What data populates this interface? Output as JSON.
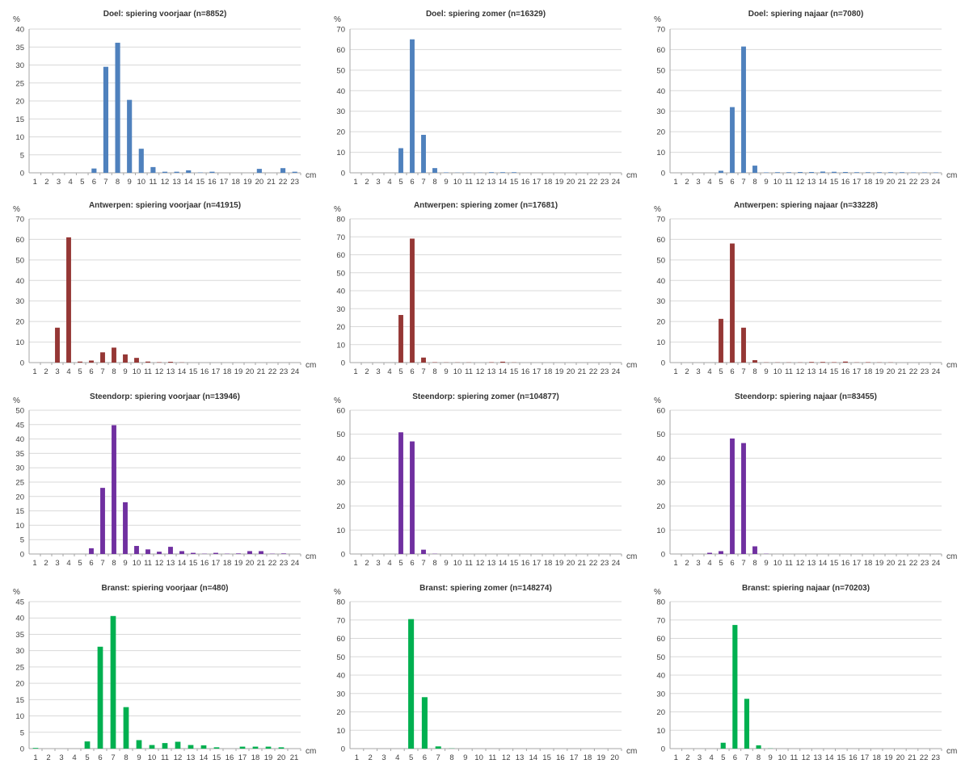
{
  "colors": {
    "blue": "#4f81bd",
    "red": "#953735",
    "purple": "#7030a0",
    "green": "#00b050",
    "grid": "#d9d9d9",
    "axis": "#a6a6a6"
  },
  "chart_data": [
    {
      "type": "bar",
      "title": "Doel: spiering voorjaar (n=8852)",
      "ylabel": "%",
      "xlabel": "cm",
      "ylim": [
        0,
        40
      ],
      "yticks": [
        0,
        5,
        10,
        15,
        20,
        25,
        30,
        35,
        40
      ],
      "grid": true,
      "color": "#4f81bd",
      "categories": [
        "1",
        "2",
        "3",
        "4",
        "5",
        "6",
        "7",
        "8",
        "9",
        "10",
        "11",
        "12",
        "13",
        "14",
        "15",
        "16",
        "17",
        "18",
        "19",
        "20",
        "21",
        "22",
        "23"
      ],
      "values": [
        0,
        0,
        0,
        0,
        0,
        1.2,
        29.5,
        36.2,
        20.3,
        6.7,
        1.6,
        0.3,
        0.3,
        0.7,
        0.1,
        0.3,
        0,
        0,
        0,
        1.1,
        0,
        1.3,
        0.3
      ]
    },
    {
      "type": "bar",
      "title": "Doel: spiering zomer (n=16329)",
      "ylabel": "%",
      "xlabel": "cm",
      "ylim": [
        0,
        70
      ],
      "yticks": [
        0,
        10,
        20,
        30,
        40,
        50,
        60,
        70
      ],
      "grid": true,
      "color": "#4f81bd",
      "categories": [
        "1",
        "2",
        "3",
        "4",
        "5",
        "6",
        "7",
        "8",
        "9",
        "10",
        "11",
        "12",
        "13",
        "14",
        "15",
        "16",
        "17",
        "18",
        "19",
        "20",
        "21",
        "22",
        "23",
        "24"
      ],
      "values": [
        0,
        0,
        0,
        0,
        12,
        65,
        18.5,
        2.3,
        0.2,
        0.1,
        0.1,
        0.1,
        0.3,
        0.3,
        0.3,
        0,
        0,
        0,
        0,
        0,
        0,
        0,
        0,
        0
      ]
    },
    {
      "type": "bar",
      "title": "Doel: spiering najaar (n=7080)",
      "ylabel": "%",
      "xlabel": "cm",
      "ylim": [
        0,
        70
      ],
      "yticks": [
        0,
        10,
        20,
        30,
        40,
        50,
        60,
        70
      ],
      "grid": true,
      "color": "#4f81bd",
      "categories": [
        "1",
        "2",
        "3",
        "4",
        "5",
        "6",
        "7",
        "8",
        "9",
        "10",
        "11",
        "12",
        "13",
        "14",
        "15",
        "16",
        "17",
        "18",
        "19",
        "20",
        "21",
        "22",
        "23",
        "24"
      ],
      "values": [
        0,
        0,
        0,
        0,
        1,
        32,
        61.5,
        3.5,
        0.2,
        0.3,
        0.3,
        0.4,
        0.4,
        0.6,
        0.5,
        0.4,
        0.3,
        0.3,
        0.3,
        0.3,
        0.3,
        0.2,
        0.2,
        0.2
      ]
    },
    {
      "type": "bar",
      "title": "Antwerpen: spiering voorjaar (n=41915)",
      "ylabel": "%",
      "xlabel": "cm",
      "ylim": [
        0,
        70
      ],
      "yticks": [
        0,
        10,
        20,
        30,
        40,
        50,
        60,
        70
      ],
      "grid": true,
      "color": "#953735",
      "categories": [
        "1",
        "2",
        "3",
        "4",
        "5",
        "6",
        "7",
        "8",
        "9",
        "10",
        "11",
        "12",
        "13",
        "14",
        "15",
        "16",
        "17",
        "18",
        "19",
        "20",
        "21",
        "22",
        "23",
        "24"
      ],
      "values": [
        0,
        0,
        17,
        61,
        0.5,
        1,
        5,
        7.3,
        4,
        2.3,
        0.5,
        0.2,
        0.4,
        0.1,
        0,
        0,
        0,
        0,
        0,
        0,
        0,
        0,
        0,
        0
      ]
    },
    {
      "type": "bar",
      "title": "Antwerpen: spiering zomer (n=17681)",
      "ylabel": "%",
      "xlabel": "cm",
      "ylim": [
        0,
        80
      ],
      "yticks": [
        0,
        10,
        20,
        30,
        40,
        50,
        60,
        70,
        80
      ],
      "grid": true,
      "color": "#953735",
      "categories": [
        "1",
        "2",
        "3",
        "4",
        "5",
        "6",
        "7",
        "8",
        "9",
        "10",
        "11",
        "12",
        "13",
        "14",
        "15",
        "16",
        "17",
        "18",
        "19",
        "20",
        "21",
        "22",
        "23",
        "24"
      ],
      "values": [
        0,
        0,
        0,
        0,
        26.5,
        69,
        2.8,
        0.2,
        0.1,
        0.1,
        0.1,
        0,
        0.2,
        0.5,
        0.1,
        0,
        0,
        0,
        0,
        0,
        0,
        0,
        0,
        0
      ]
    },
    {
      "type": "bar",
      "title": "Antwerpen: spiering najaar (n=33228)",
      "ylabel": "%",
      "xlabel": "cm",
      "ylim": [
        0,
        70
      ],
      "yticks": [
        0,
        10,
        20,
        30,
        40,
        50,
        60,
        70
      ],
      "grid": true,
      "color": "#953735",
      "categories": [
        "1",
        "2",
        "3",
        "4",
        "5",
        "6",
        "7",
        "8",
        "9",
        "10",
        "11",
        "12",
        "13",
        "14",
        "15",
        "16",
        "17",
        "18",
        "19",
        "20",
        "21",
        "22",
        "23",
        "24"
      ],
      "values": [
        0,
        0,
        0,
        0,
        21.3,
        58,
        17,
        1.2,
        0.1,
        0.1,
        0.1,
        0.1,
        0.3,
        0.3,
        0.2,
        0.5,
        0.1,
        0.2,
        0.1,
        0.1,
        0,
        0,
        0,
        0
      ]
    },
    {
      "type": "bar",
      "title": "Steendorp: spiering voorjaar (n=13946)",
      "ylabel": "%",
      "xlabel": "cm",
      "ylim": [
        0,
        50
      ],
      "yticks": [
        0,
        5,
        10,
        15,
        20,
        25,
        30,
        35,
        40,
        45,
        50
      ],
      "grid": true,
      "color": "#7030a0",
      "categories": [
        "1",
        "2",
        "3",
        "4",
        "5",
        "6",
        "7",
        "8",
        "9",
        "10",
        "11",
        "12",
        "13",
        "14",
        "15",
        "16",
        "17",
        "18",
        "19",
        "20",
        "21",
        "22",
        "23",
        "24"
      ],
      "values": [
        0,
        0,
        0,
        0,
        0,
        2,
        23,
        44.8,
        18,
        2.8,
        1.6,
        0.8,
        2.5,
        1,
        0.4,
        0.1,
        0.4,
        0.1,
        0.2,
        1,
        1,
        0.1,
        0.2,
        0
      ]
    },
    {
      "type": "bar",
      "title": "Steendorp: spiering zomer (n=104877)",
      "ylabel": "%",
      "xlabel": "cm",
      "ylim": [
        0,
        60
      ],
      "yticks": [
        0,
        10,
        20,
        30,
        40,
        50,
        60
      ],
      "grid": true,
      "color": "#7030a0",
      "categories": [
        "1",
        "2",
        "3",
        "4",
        "5",
        "6",
        "7",
        "8",
        "9",
        "10",
        "11",
        "12",
        "13",
        "14",
        "15",
        "16",
        "17",
        "18",
        "19",
        "20",
        "21",
        "22",
        "23",
        "24"
      ],
      "values": [
        0,
        0,
        0,
        0,
        50.8,
        47,
        1.8,
        0.1,
        0,
        0,
        0,
        0,
        0,
        0,
        0,
        0,
        0,
        0,
        0,
        0,
        0,
        0,
        0,
        0
      ]
    },
    {
      "type": "bar",
      "title": "Steendorp: spiering najaar (n=83455)",
      "ylabel": "%",
      "xlabel": "cm",
      "ylim": [
        0,
        60
      ],
      "yticks": [
        0,
        10,
        20,
        30,
        40,
        50,
        60
      ],
      "grid": true,
      "color": "#7030a0",
      "categories": [
        "1",
        "2",
        "3",
        "4",
        "5",
        "6",
        "7",
        "8",
        "9",
        "10",
        "11",
        "12",
        "13",
        "14",
        "15",
        "16",
        "17",
        "18",
        "19",
        "20",
        "21",
        "22",
        "23",
        "24"
      ],
      "values": [
        0,
        0,
        0,
        0.5,
        1.2,
        48.2,
        46.3,
        3.2,
        0.1,
        0,
        0,
        0,
        0,
        0,
        0,
        0,
        0,
        0,
        0,
        0,
        0,
        0,
        0,
        0
      ]
    },
    {
      "type": "bar",
      "title": "Branst: spiering voorjaar (n=480)",
      "ylabel": "%",
      "xlabel": "cm",
      "ylim": [
        0,
        45
      ],
      "yticks": [
        0,
        5,
        10,
        15,
        20,
        25,
        30,
        35,
        40,
        45
      ],
      "grid": true,
      "color": "#00b050",
      "categories": [
        "1",
        "2",
        "3",
        "4",
        "5",
        "6",
        "7",
        "8",
        "9",
        "10",
        "11",
        "12",
        "13",
        "14",
        "15",
        "16",
        "17",
        "18",
        "19",
        "20",
        "21"
      ],
      "values": [
        0.2,
        0,
        0,
        0,
        2.2,
        31.2,
        40.6,
        12.7,
        2.6,
        1.1,
        1.7,
        2.1,
        1.1,
        1,
        0.4,
        0,
        0.6,
        0.6,
        0.6,
        0.4,
        0
      ]
    },
    {
      "type": "bar",
      "title": "Branst: spiering zomer (n=148274)",
      "ylabel": "%",
      "xlabel": "cm",
      "ylim": [
        0,
        80
      ],
      "yticks": [
        0,
        10,
        20,
        30,
        40,
        50,
        60,
        70,
        80
      ],
      "grid": true,
      "color": "#00b050",
      "categories": [
        "1",
        "2",
        "3",
        "4",
        "5",
        "6",
        "7",
        "8",
        "9",
        "10",
        "11",
        "12",
        "13",
        "14",
        "15",
        "16",
        "17",
        "18",
        "19",
        "20"
      ],
      "values": [
        0,
        0,
        0,
        0,
        70.5,
        28,
        1.2,
        0.1,
        0,
        0,
        0,
        0,
        0,
        0,
        0,
        0,
        0,
        0,
        0,
        0
      ]
    },
    {
      "type": "bar",
      "title": "Branst: spiering najaar (n=70203)",
      "ylabel": "%",
      "xlabel": "cm",
      "ylim": [
        0,
        80
      ],
      "yticks": [
        0,
        10,
        20,
        30,
        40,
        50,
        60,
        70,
        80
      ],
      "grid": true,
      "color": "#00b050",
      "categories": [
        "1",
        "2",
        "3",
        "4",
        "5",
        "6",
        "7",
        "8",
        "9",
        "10",
        "11",
        "12",
        "13",
        "14",
        "15",
        "16",
        "17",
        "18",
        "19",
        "20",
        "21",
        "22",
        "23"
      ],
      "values": [
        0,
        0,
        0,
        0,
        3.2,
        67.3,
        27.1,
        1.8,
        0.1,
        0,
        0,
        0,
        0,
        0,
        0,
        0,
        0,
        0,
        0,
        0,
        0,
        0,
        0
      ]
    }
  ]
}
